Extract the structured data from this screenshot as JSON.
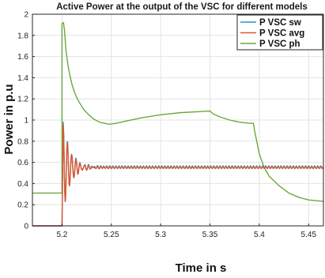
{
  "chart_data": {
    "type": "line",
    "title": "Active Power at the output of the VSC for different models",
    "xlabel": "Time in s",
    "ylabel": "Power in p.u",
    "xlim": [
      5.17,
      5.465
    ],
    "ylim": [
      0,
      2
    ],
    "xticks": [
      "5.2",
      "5.25",
      "5.3",
      "5.35",
      "5.4",
      "5.45"
    ],
    "yticks": [
      "0",
      "0.2",
      "0.4",
      "0.6",
      "0.8",
      "1",
      "1.2",
      "1.4",
      "1.6",
      "1.8",
      "2"
    ],
    "grid": true,
    "legend": "top-right",
    "series": [
      {
        "name": "P VSC sw",
        "color": "#2e8fd0",
        "form": "oscillation",
        "start": 5.2,
        "peak": 0.98,
        "steady": 0.555,
        "ripple": 0.012,
        "end": 5.465
      },
      {
        "name": "P VSC avg",
        "color": "#e0562a",
        "form": "oscillation",
        "start": 5.2,
        "peak": 0.96,
        "steady": 0.55,
        "ripple": 0.008,
        "end": 5.465
      },
      {
        "name": "P VSC ph",
        "color": "#6aaa3c",
        "form": "points",
        "x": [
          5.17,
          5.2,
          5.2,
          5.201,
          5.2015,
          5.2025,
          5.204,
          5.206,
          5.208,
          5.21,
          5.212,
          5.215,
          5.218,
          5.222,
          5.227,
          5.232,
          5.238,
          5.243,
          5.248,
          5.255,
          5.265,
          5.28,
          5.3,
          5.32,
          5.34,
          5.35,
          5.353,
          5.36,
          5.37,
          5.38,
          5.39,
          5.394,
          5.395,
          5.4,
          5.405,
          5.41,
          5.42,
          5.43,
          5.44,
          5.45,
          5.465
        ],
        "y": [
          0.31,
          0.31,
          1.91,
          1.92,
          1.92,
          1.85,
          1.66,
          1.52,
          1.42,
          1.34,
          1.28,
          1.21,
          1.16,
          1.1,
          1.05,
          1.01,
          0.98,
          0.97,
          0.96,
          0.97,
          0.99,
          1.02,
          1.05,
          1.07,
          1.08,
          1.085,
          1.06,
          1.03,
          1.0,
          0.98,
          0.97,
          0.97,
          0.91,
          0.68,
          0.55,
          0.47,
          0.38,
          0.31,
          0.27,
          0.245,
          0.232
        ]
      }
    ]
  }
}
